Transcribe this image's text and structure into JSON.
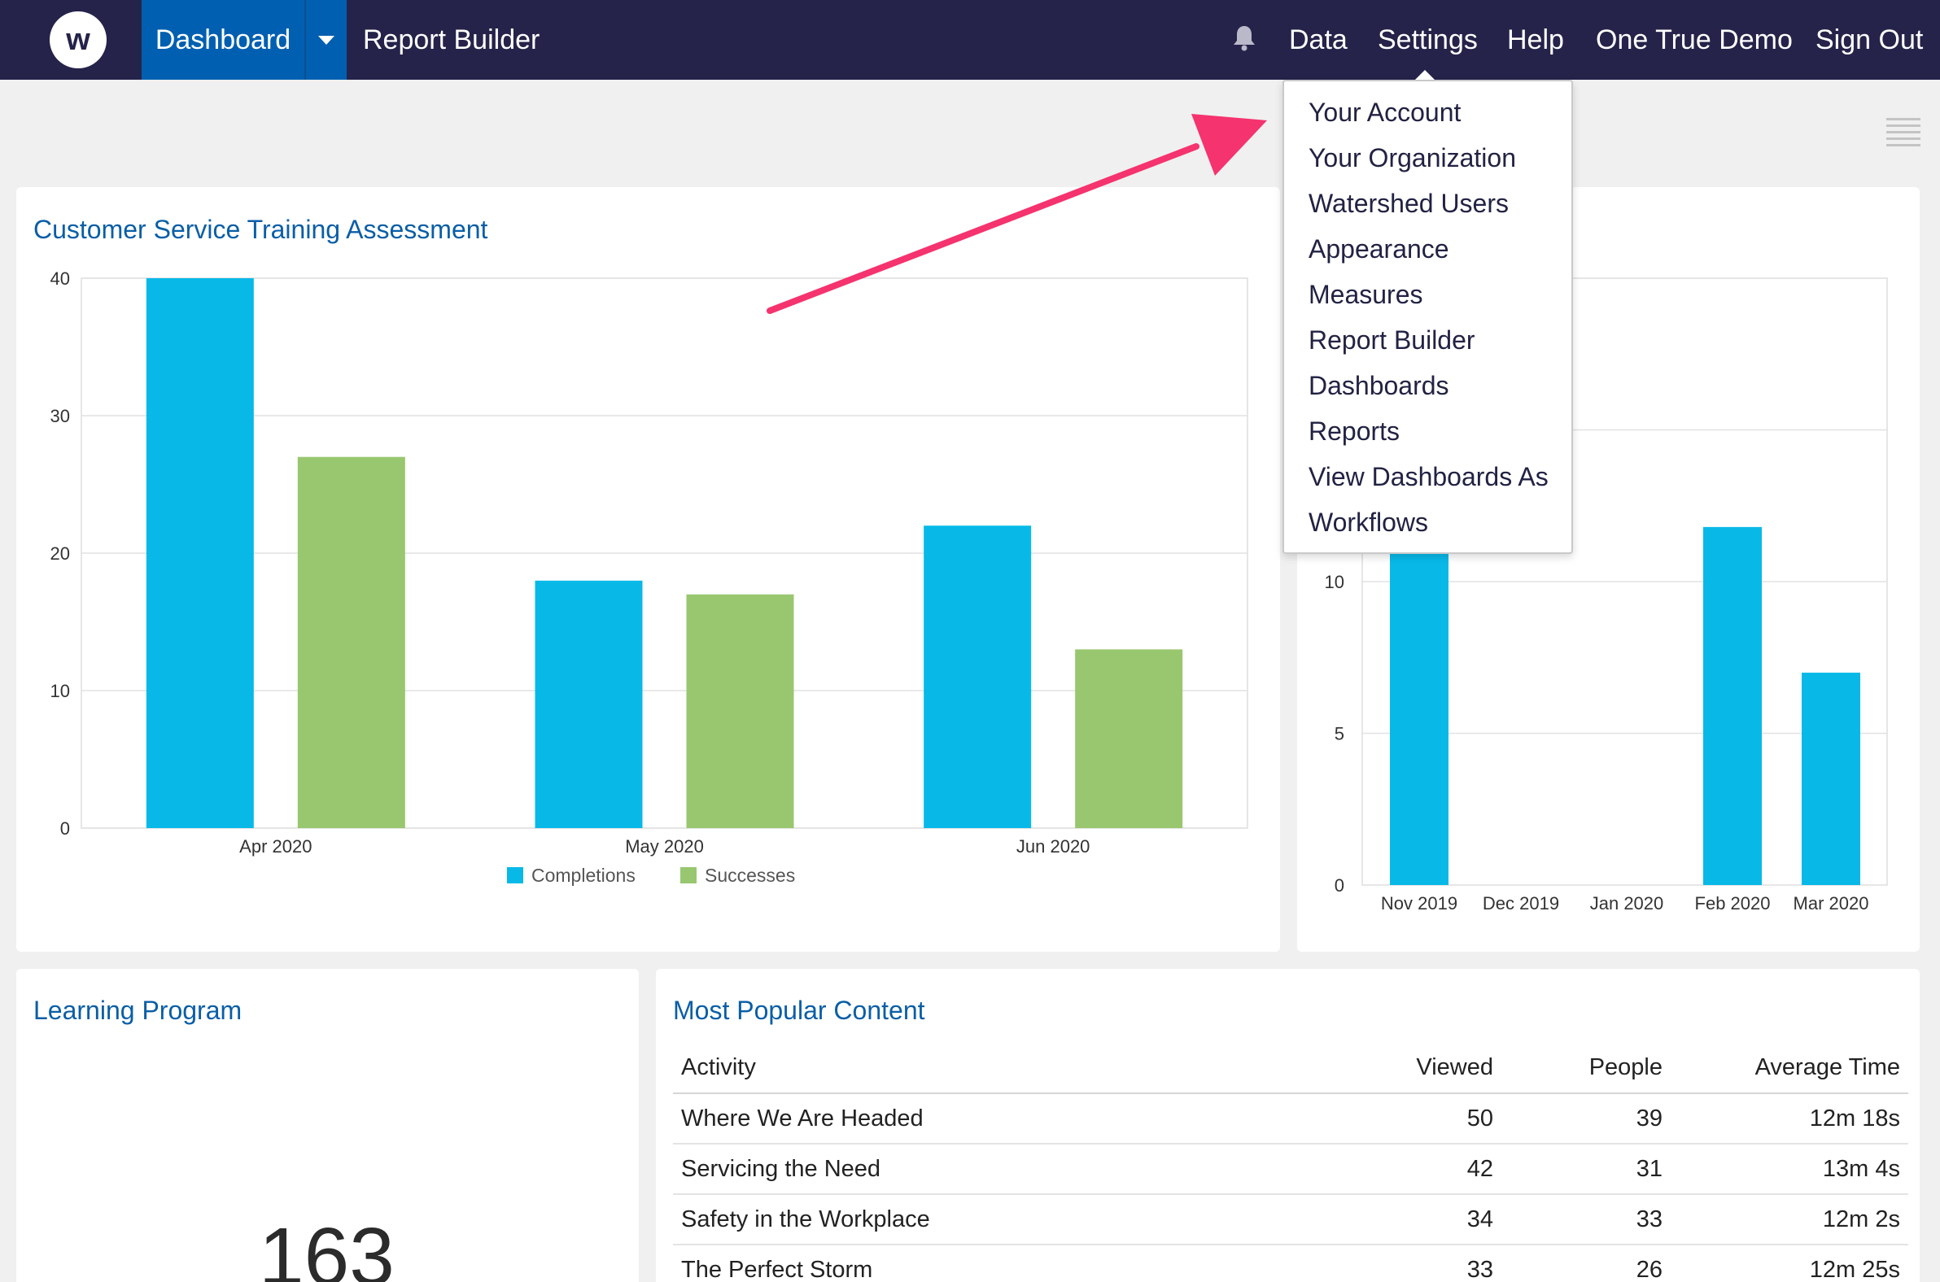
{
  "nav": {
    "logo_letter": "w",
    "dashboard_label": "Dashboard",
    "report_builder_label": "Report Builder",
    "data_label": "Data",
    "settings_label": "Settings",
    "help_label": "Help",
    "org_label": "One True Demo",
    "sign_out_label": "Sign Out"
  },
  "settings_menu": {
    "items": [
      "Your Account",
      "Your Organization",
      "Watershed Users",
      "Appearance",
      "Measures",
      "Report Builder",
      "Dashboards",
      "Reports",
      "View Dashboards As",
      "Workflows"
    ]
  },
  "colors": {
    "nav_bg": "#25234a",
    "active_tab": "#005fb0",
    "completions": "#08b9e8",
    "successes": "#98c76f",
    "title_blue": "#0a5ea6",
    "annotation_arrow": "#f5336e"
  },
  "cards": {
    "cst_title": "Customer Service Training Assessment",
    "learning_title": "Learning Program",
    "learning_value": "163",
    "popular_title": "Most Popular Content"
  },
  "chart_data": [
    {
      "type": "bar",
      "title": "Customer Service Training Assessment",
      "categories": [
        "Apr 2020",
        "May 2020",
        "Jun 2020"
      ],
      "series": [
        {
          "name": "Completions",
          "values": [
            40,
            18,
            22
          ]
        },
        {
          "name": "Successes",
          "values": [
            27,
            17,
            13
          ]
        }
      ],
      "ylim": [
        0,
        40
      ],
      "yticks": [
        0,
        10,
        20,
        30,
        40
      ],
      "grid": true,
      "legend": "bottom"
    },
    {
      "type": "bar",
      "categories": [
        "Nov 2019",
        "Dec 2019",
        "Jan 2020",
        "Feb 2020",
        "Mar 2020"
      ],
      "series": [
        {
          "values": [
            16,
            0,
            0,
            11.8,
            7
          ]
        }
      ],
      "ylim": [
        0,
        20
      ],
      "yticks": [
        0,
        5,
        10
      ],
      "grid": true
    }
  ],
  "popular_table": {
    "columns": [
      "Activity",
      "Viewed",
      "People",
      "Average Time"
    ],
    "rows": [
      [
        "Where We Are Headed",
        "50",
        "39",
        "12m 18s"
      ],
      [
        "Servicing the Need",
        "42",
        "31",
        "13m 4s"
      ],
      [
        "Safety in the Workplace",
        "34",
        "33",
        "12m 2s"
      ],
      [
        "The Perfect Storm",
        "33",
        "26",
        "12m 25s"
      ]
    ]
  }
}
